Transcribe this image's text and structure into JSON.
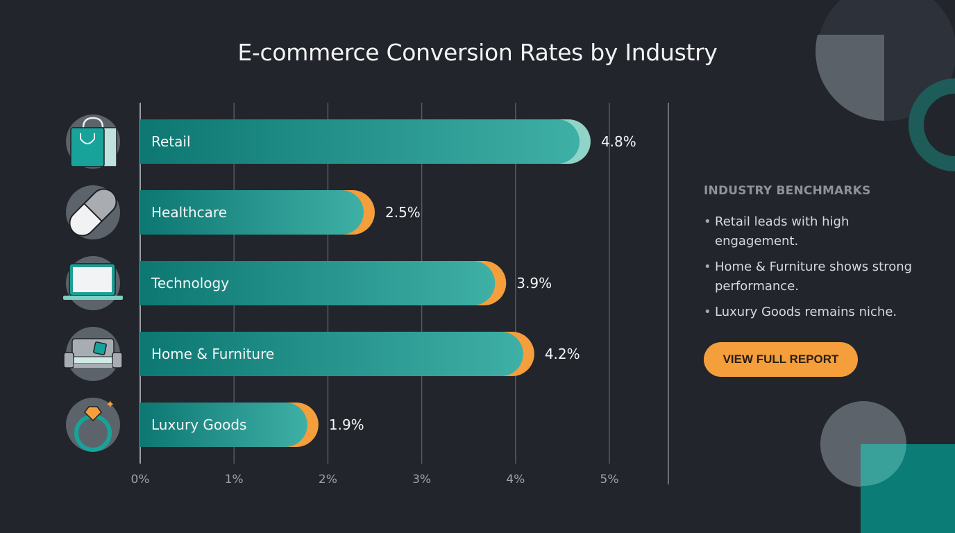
{
  "chart_data": {
    "type": "bar",
    "orientation": "horizontal",
    "title": "E-commerce Conversion Rates by Industry",
    "categories": [
      "Retail",
      "Healthcare",
      "Technology",
      "Home & Furniture",
      "Luxury Goods"
    ],
    "values": [
      4.8,
      2.5,
      3.9,
      4.2,
      1.9
    ],
    "value_labels": [
      "4.8%",
      "2.5%",
      "3.9%",
      "4.2%",
      "1.9%"
    ],
    "icons": [
      "shopping-bag-icon",
      "pill-icon",
      "laptop-icon",
      "sofa-icon",
      "diamond-ring-icon"
    ],
    "xlim": [
      0,
      5
    ],
    "xticks": [
      "0%",
      "1%",
      "2%",
      "3%",
      "4%",
      "5%"
    ],
    "grid": true,
    "colors": {
      "bar": "#1f9e96",
      "bar_dark": "#0f7a74",
      "cap_highlight": "#8fd3c9",
      "cap_accent": "#f59e3c"
    }
  },
  "sidebar": {
    "heading": "INDUSTRY BENCHMARKS",
    "bullets": [
      "Retail leads with high engagement.",
      "Home & Furniture shows strong performance.",
      "Luxury Goods remains niche."
    ],
    "button_label": "VIEW FULL REPORT"
  }
}
